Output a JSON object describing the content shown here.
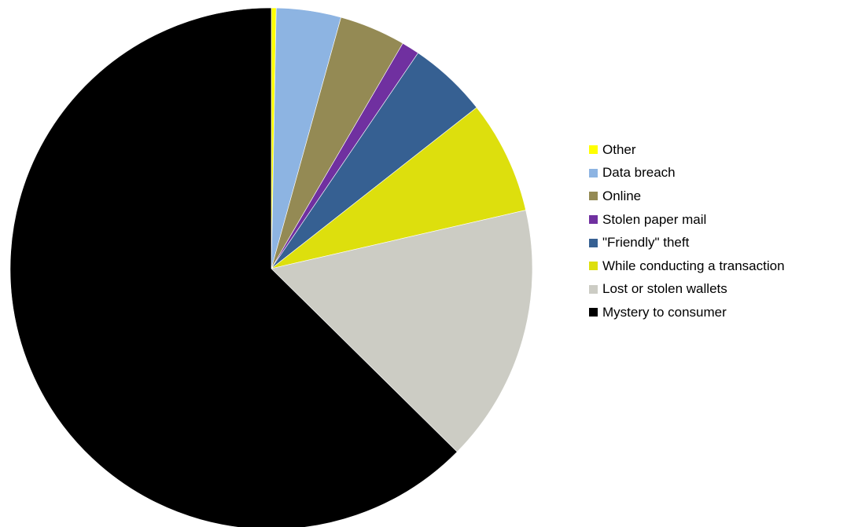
{
  "chart_data": {
    "type": "pie",
    "start_angle_deg": 0,
    "direction": "clockwise",
    "slices": [
      {
        "label": "Other",
        "value": 0.3,
        "color": "#FFFF00"
      },
      {
        "label": "Data breach",
        "value": 4.0,
        "color": "#8DB4E2"
      },
      {
        "label": "Online",
        "value": 4.1,
        "color": "#948A54"
      },
      {
        "label": "Stolen paper mail",
        "value": 1.1,
        "color": "#7030A0"
      },
      {
        "label": "\"Friendly\" theft",
        "value": 4.9,
        "color": "#366092"
      },
      {
        "label": "While conducting a transaction",
        "value": 7.0,
        "color": "#DDDF0D"
      },
      {
        "label": "Lost or stolen wallets",
        "value": 16.0,
        "color": "#CCCCC4"
      },
      {
        "label": "Mystery to consumer",
        "value": 62.6,
        "color": "#000000"
      }
    ],
    "legend_position": "right"
  }
}
